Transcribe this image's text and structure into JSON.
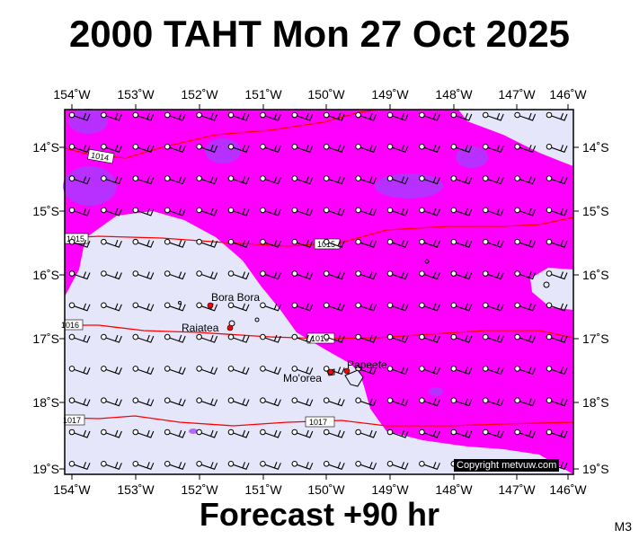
{
  "title": "2000 TAHT Mon 27 Oct 2025",
  "forecast_label": "Forecast +90 hr",
  "map_code": "M3",
  "copyright": "Copyright metvuw.com",
  "lon_labels": [
    "154˚W",
    "153˚W",
    "152˚W",
    "151˚W",
    "150˚W",
    "149˚W",
    "148˚W",
    "147˚W",
    "146˚W"
  ],
  "lat_labels": [
    "14˚S",
    "15˚S",
    "16˚S",
    "17˚S",
    "18˚S",
    "19˚S"
  ],
  "isobars": [
    {
      "label": "1014",
      "color": "#ff0000"
    },
    {
      "label": "1015",
      "color": "#ff0000"
    },
    {
      "label": "1016",
      "color": "#ff0000"
    },
    {
      "label": "1017",
      "color": "#ff0000"
    }
  ],
  "places": [
    {
      "name": "Bora Bora"
    },
    {
      "name": "Raiatea"
    },
    {
      "name": "Mo'orea"
    },
    {
      "name": "Papeete"
    }
  ],
  "colors": {
    "background_low": "#e6e6fa",
    "rain_magenta": "#ff00ff",
    "rain_purple": "#a040ff",
    "isobar": "#ff0000",
    "frame": "#000000"
  }
}
